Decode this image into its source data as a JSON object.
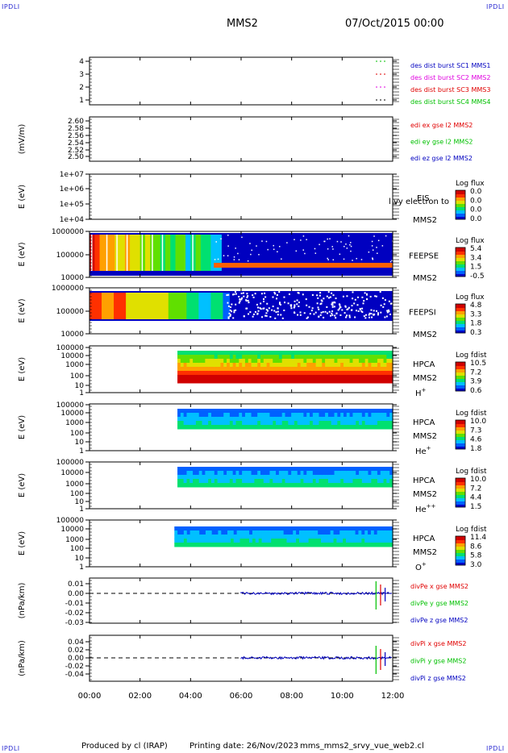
{
  "corner_label": "IPDLI",
  "header": {
    "spacecraft": "MMS2",
    "date": "07/Oct/2015 00:00"
  },
  "footer": {
    "produced_by": "Produced by cl (IRAP)",
    "printing_date": "Printing date: 26/Nov/2023",
    "script_name": "mms_mms2_srvy_vue_web2.cl"
  },
  "x_axis": {
    "ticks": [
      "00:00",
      "02:00",
      "04:00",
      "06:00",
      "08:00",
      "10:00",
      "12:00"
    ]
  },
  "colors": {
    "red": "#e00000",
    "green": "#00c000",
    "blue": "#0000c0",
    "magenta": "#e000e0",
    "dash": "#000000"
  },
  "chart_data": [
    {
      "id": "burst",
      "type": "line",
      "xlabel": "",
      "ylabel": "",
      "yticks": [
        "4",
        "3",
        "2",
        "1"
      ],
      "legend": [
        {
          "label": "des dist burst SC1 MMS1",
          "color": "#0000c0"
        },
        {
          "label": "des dist burst SC2 MMS2",
          "color": "#e000e0"
        },
        {
          "label": "des dist burst SC3 MMS3",
          "color": "#e00000"
        },
        {
          "label": "des dist burst SC4 MMS4",
          "color": "#00c000"
        }
      ]
    },
    {
      "id": "edi",
      "type": "line",
      "ylabel": "(mV/m)",
      "yticks": [
        "2.60",
        "2.58",
        "2.56",
        "2.54",
        "2.52",
        "2.50"
      ],
      "legend": [
        {
          "label": "edi ex gse l2 MMS2",
          "color": "#e00000"
        },
        {
          "label": "edi ey gse l2 MMS2",
          "color": "#00c000"
        },
        {
          "label": "edi ez gse l2 MMS2",
          "color": "#0000c0"
        }
      ]
    },
    {
      "id": "eis",
      "type": "heatmap",
      "ylabel": "E (eV)",
      "yticks": [
        "1e+07",
        "1e+06",
        "1e+05",
        "1e+04"
      ],
      "instrument": "EIS",
      "overlay": "l vy electron to",
      "spacecraft": "MMS2",
      "colorbar": {
        "title": "Log flux",
        "ticks": [
          "0.0",
          "0.0",
          "0.0",
          "0.0"
        ]
      }
    },
    {
      "id": "feepse",
      "type": "heatmap",
      "ylabel": "E (eV)",
      "yticks": [
        "1000000",
        "100000",
        "10000"
      ],
      "instrument": "FEEPSE",
      "spacecraft": "MMS2",
      "colorbar": {
        "title": "Log flux",
        "ticks": [
          "5.4",
          "3.4",
          "1.5",
          "-0.5"
        ]
      }
    },
    {
      "id": "feepsi",
      "type": "heatmap",
      "ylabel": "E (eV)",
      "yticks": [
        "1000000",
        "100000",
        "10000"
      ],
      "instrument": "FEEPSI",
      "spacecraft": "MMS2",
      "colorbar": {
        "title": "Log flux",
        "ticks": [
          "4.8",
          "3.3",
          "1.8",
          "0.3"
        ]
      }
    },
    {
      "id": "hpca_h",
      "type": "heatmap",
      "ylabel": "E (eV)",
      "yticks": [
        "100000",
        "10000",
        "1000",
        "100",
        "10",
        "1"
      ],
      "instrument": "HPCA",
      "spacecraft": "MMS2",
      "species": "H",
      "charge": "+",
      "colorbar": {
        "title": "Log fdist",
        "ticks": [
          "10.5",
          "7.2",
          "3.9",
          "0.6"
        ]
      }
    },
    {
      "id": "hpca_he",
      "type": "heatmap",
      "ylabel": "E (eV)",
      "yticks": [
        "100000",
        "10000",
        "1000",
        "100",
        "10",
        "1"
      ],
      "instrument": "HPCA",
      "spacecraft": "MMS2",
      "species": "He",
      "charge": "+",
      "colorbar": {
        "title": "Log fdist",
        "ticks": [
          "10.0",
          "7.3",
          "4.6",
          "1.8"
        ]
      }
    },
    {
      "id": "hpca_hepp",
      "type": "heatmap",
      "ylabel": "E (eV)",
      "yticks": [
        "100000",
        "10000",
        "1000",
        "100",
        "10",
        "1"
      ],
      "instrument": "HPCA",
      "spacecraft": "MMS2",
      "species": "He",
      "charge": "++",
      "colorbar": {
        "title": "Log fdist",
        "ticks": [
          "10.0",
          "7.2",
          "4.4",
          "1.5"
        ]
      }
    },
    {
      "id": "hpca_o",
      "type": "heatmap",
      "ylabel": "E (eV)",
      "yticks": [
        "100000",
        "10000",
        "1000",
        "100",
        "10",
        "1"
      ],
      "instrument": "HPCA",
      "spacecraft": "MMS2",
      "species": "O",
      "charge": "+",
      "colorbar": {
        "title": "Log fdist",
        "ticks": [
          "11.4",
          "8.6",
          "5.8",
          "3.0"
        ]
      }
    },
    {
      "id": "divpe",
      "type": "line",
      "ylabel": "(nPa/km)",
      "yticks": [
        "0.01",
        "0.00",
        "-0.01",
        "-0.02",
        "-0.03"
      ],
      "legend": [
        {
          "label": "divPe x gse MMS2",
          "color": "#e00000"
        },
        {
          "label": "divPe y gse MMS2",
          "color": "#00c000"
        },
        {
          "label": "divPe z gse MMS2",
          "color": "#0000c0"
        }
      ]
    },
    {
      "id": "divpi",
      "type": "line",
      "ylabel": "(nPa/km)",
      "yticks": [
        "0.04",
        "0.02",
        "0.00",
        "-0.02",
        "-0.04"
      ],
      "legend": [
        {
          "label": "divPi x gse MMS2",
          "color": "#e00000"
        },
        {
          "label": "divPi y gse MMS2",
          "color": "#00c000"
        },
        {
          "label": "divPi z gse MMS2",
          "color": "#0000c0"
        }
      ]
    }
  ]
}
